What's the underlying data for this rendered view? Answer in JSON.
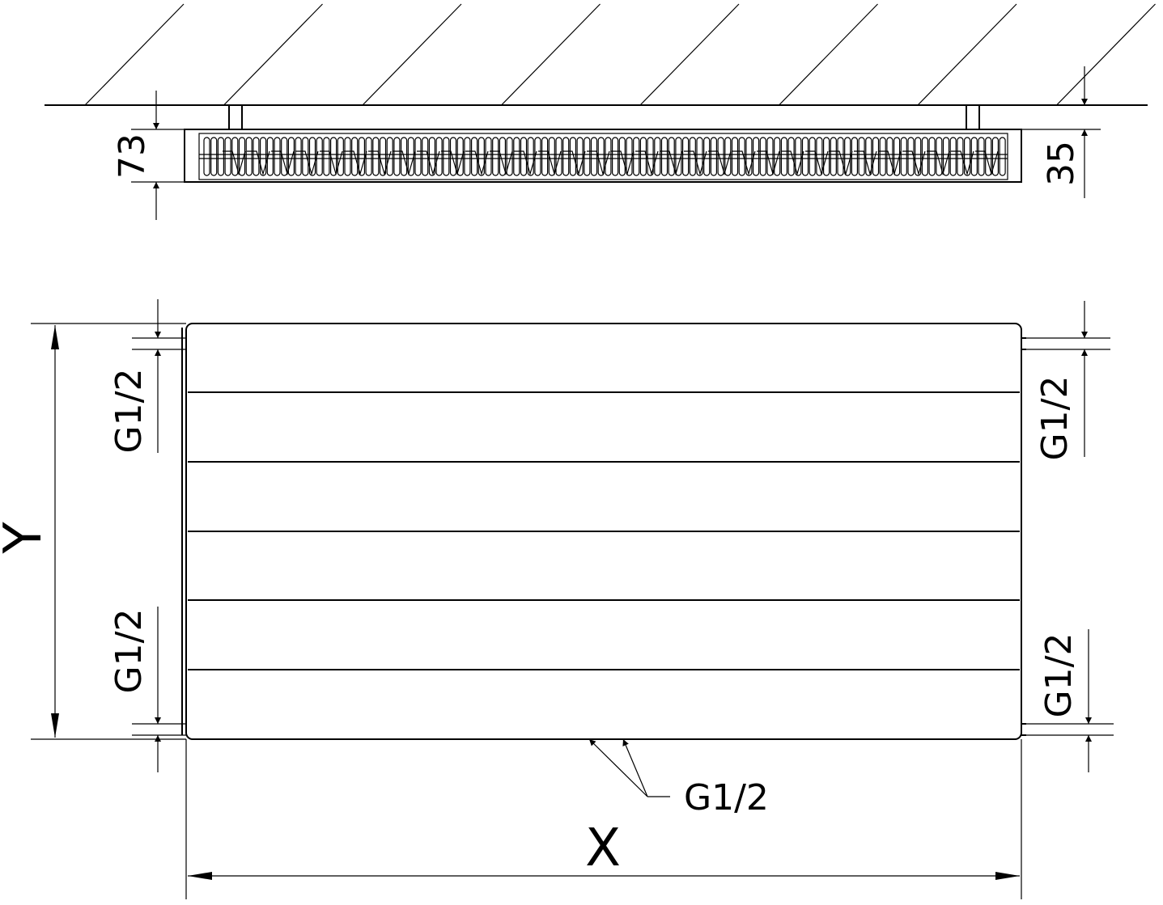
{
  "top_view": {
    "depth_dimension": "73",
    "wall_gap_dimension": "35"
  },
  "front_view": {
    "height_label": "Y",
    "width_label": "X",
    "connections": {
      "left_top": "G1/2",
      "left_bottom": "G1/2",
      "right_top": "G1/2",
      "right_bottom": "G1/2",
      "bottom": "G1/2"
    }
  }
}
